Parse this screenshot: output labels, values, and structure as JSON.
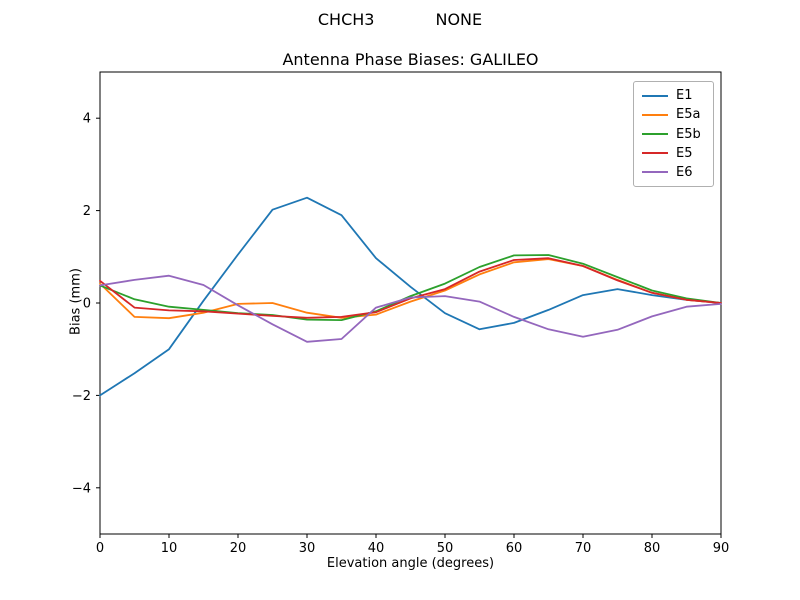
{
  "figure": {
    "suptitle": "CHCH3            NONE",
    "title": "Antenna Phase Biases: GALILEO",
    "xlabel": "Elevation angle (degrees)",
    "ylabel": "Bias (mm)"
  },
  "chart_data": {
    "type": "line",
    "suptitle": "CHCH3            NONE",
    "title": "Antenna Phase Biases: GALILEO",
    "xlabel": "Elevation angle (degrees)",
    "ylabel": "Bias (mm)",
    "xlim": [
      0,
      90
    ],
    "ylim": [
      -5,
      5
    ],
    "xticks": [
      0,
      10,
      20,
      30,
      40,
      50,
      60,
      70,
      80,
      90
    ],
    "yticks": [
      -4,
      -2,
      0,
      2,
      4
    ],
    "grid": false,
    "legend_position": "upper right",
    "x": [
      0,
      5,
      10,
      15,
      20,
      25,
      30,
      35,
      40,
      45,
      50,
      55,
      60,
      65,
      70,
      75,
      80,
      85,
      90
    ],
    "series": [
      {
        "name": "E1",
        "color": "#1f77b4",
        "values": [
          -2.0,
          -1.52,
          -1.0,
          0.05,
          1.05,
          2.02,
          2.28,
          1.9,
          0.97,
          0.35,
          -0.22,
          -0.57,
          -0.43,
          -0.15,
          0.17,
          0.3,
          0.17,
          0.07,
          0.0
        ]
      },
      {
        "name": "E5a",
        "color": "#ff7f0e",
        "values": [
          0.42,
          -0.3,
          -0.33,
          -0.21,
          -0.02,
          0.0,
          -0.21,
          -0.32,
          -0.25,
          0.03,
          0.27,
          0.62,
          0.88,
          0.95,
          0.8,
          0.5,
          0.22,
          0.07,
          0.0
        ]
      },
      {
        "name": "E5b",
        "color": "#2ca02c",
        "values": [
          0.38,
          0.08,
          -0.08,
          -0.15,
          -0.22,
          -0.26,
          -0.36,
          -0.37,
          -0.18,
          0.15,
          0.42,
          0.78,
          1.03,
          1.04,
          0.85,
          0.56,
          0.27,
          0.1,
          0.0
        ]
      },
      {
        "name": "E5",
        "color": "#d62728",
        "values": [
          0.48,
          -0.1,
          -0.16,
          -0.18,
          -0.23,
          -0.28,
          -0.32,
          -0.3,
          -0.2,
          0.1,
          0.3,
          0.68,
          0.93,
          0.97,
          0.8,
          0.49,
          0.22,
          0.07,
          0.0
        ]
      },
      {
        "name": "E6",
        "color": "#9467bd",
        "values": [
          0.38,
          0.5,
          0.59,
          0.39,
          -0.05,
          -0.46,
          -0.84,
          -0.78,
          -0.1,
          0.12,
          0.15,
          0.03,
          -0.3,
          -0.57,
          -0.73,
          -0.58,
          -0.29,
          -0.08,
          -0.02
        ]
      }
    ]
  }
}
